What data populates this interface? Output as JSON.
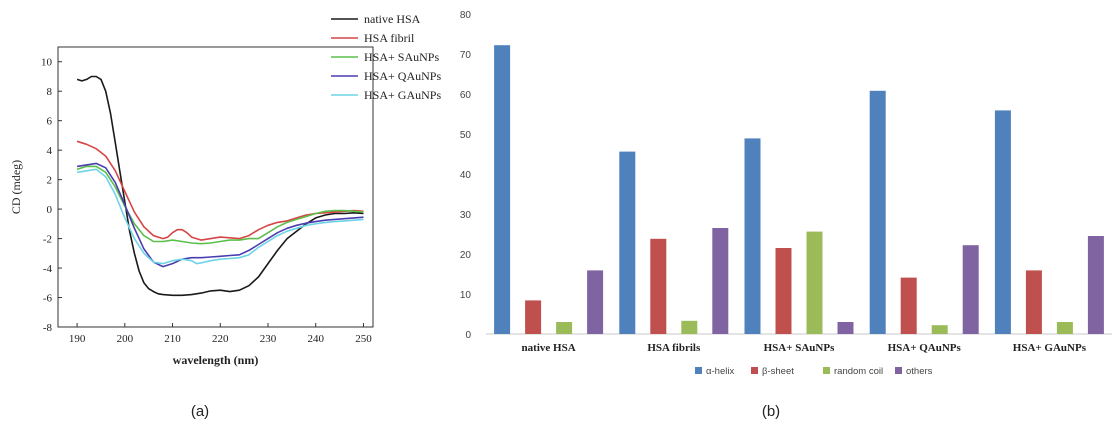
{
  "panels": {
    "a_label": "(a)",
    "b_label": "(b)"
  },
  "chart_data": [
    {
      "type": "line",
      "xlabel": "wavelength (nm)",
      "ylabel": "CD (mdeg)",
      "xlim": [
        186,
        252
      ],
      "ylim": [
        -8,
        11
      ],
      "xticks": [
        190,
        200,
        210,
        220,
        230,
        240,
        250
      ],
      "yticks": [
        -8,
        -6,
        -4,
        -2,
        0,
        2,
        4,
        6,
        8,
        10
      ],
      "grid": false,
      "legend_position": "top-right",
      "series": [
        {
          "name": "native HSA",
          "color": "#1a1a1a",
          "points": [
            [
              190,
              8.8
            ],
            [
              191,
              8.7
            ],
            [
              192,
              8.8
            ],
            [
              193,
              9.0
            ],
            [
              194,
              9.0
            ],
            [
              195,
              8.8
            ],
            [
              196,
              8.0
            ],
            [
              197,
              6.5
            ],
            [
              198,
              4.5
            ],
            [
              199,
              2.5
            ],
            [
              200,
              0.5
            ],
            [
              201,
              -1.5
            ],
            [
              202,
              -3.0
            ],
            [
              203,
              -4.2
            ],
            [
              204,
              -5.0
            ],
            [
              205,
              -5.4
            ],
            [
              206,
              -5.6
            ],
            [
              207,
              -5.75
            ],
            [
              208,
              -5.8
            ],
            [
              210,
              -5.85
            ],
            [
              212,
              -5.85
            ],
            [
              214,
              -5.8
            ],
            [
              216,
              -5.7
            ],
            [
              218,
              -5.55
            ],
            [
              220,
              -5.5
            ],
            [
              222,
              -5.6
            ],
            [
              224,
              -5.5
            ],
            [
              226,
              -5.2
            ],
            [
              228,
              -4.6
            ],
            [
              230,
              -3.7
            ],
            [
              232,
              -2.8
            ],
            [
              234,
              -2.0
            ],
            [
              236,
              -1.5
            ],
            [
              238,
              -1.0
            ],
            [
              240,
              -0.6
            ],
            [
              242,
              -0.4
            ],
            [
              244,
              -0.3
            ],
            [
              246,
              -0.3
            ],
            [
              248,
              -0.25
            ],
            [
              250,
              -0.3
            ]
          ]
        },
        {
          "name": "HSA fibril",
          "color": "#d64545",
          "points": [
            [
              190,
              4.6
            ],
            [
              192,
              4.4
            ],
            [
              194,
              4.1
            ],
            [
              196,
              3.6
            ],
            [
              198,
              2.6
            ],
            [
              200,
              1.2
            ],
            [
              202,
              -0.2
            ],
            [
              204,
              -1.2
            ],
            [
              206,
              -1.8
            ],
            [
              208,
              -2.0
            ],
            [
              209,
              -1.9
            ],
            [
              210,
              -1.6
            ],
            [
              211,
              -1.4
            ],
            [
              212,
              -1.4
            ],
            [
              213,
              -1.6
            ],
            [
              214,
              -1.9
            ],
            [
              216,
              -2.1
            ],
            [
              218,
              -2.0
            ],
            [
              220,
              -1.9
            ],
            [
              222,
              -1.95
            ],
            [
              224,
              -2.0
            ],
            [
              226,
              -1.8
            ],
            [
              228,
              -1.4
            ],
            [
              230,
              -1.1
            ],
            [
              232,
              -0.9
            ],
            [
              234,
              -0.8
            ],
            [
              236,
              -0.6
            ],
            [
              238,
              -0.4
            ],
            [
              240,
              -0.3
            ],
            [
              242,
              -0.25
            ],
            [
              244,
              -0.2
            ],
            [
              246,
              -0.15
            ],
            [
              248,
              -0.1
            ],
            [
              250,
              -0.15
            ]
          ]
        },
        {
          "name": "HSA+ SAuNPs",
          "color": "#5cbf4a",
          "points": [
            [
              190,
              2.7
            ],
            [
              192,
              2.9
            ],
            [
              194,
              2.9
            ],
            [
              196,
              2.5
            ],
            [
              198,
              1.5
            ],
            [
              200,
              0.2
            ],
            [
              202,
              -1.0
            ],
            [
              204,
              -1.8
            ],
            [
              206,
              -2.2
            ],
            [
              208,
              -2.2
            ],
            [
              210,
              -2.1
            ],
            [
              212,
              -2.2
            ],
            [
              214,
              -2.3
            ],
            [
              216,
              -2.35
            ],
            [
              218,
              -2.3
            ],
            [
              220,
              -2.2
            ],
            [
              222,
              -2.1
            ],
            [
              224,
              -2.1
            ],
            [
              226,
              -2.0
            ],
            [
              228,
              -2.0
            ],
            [
              230,
              -1.6
            ],
            [
              232,
              -1.2
            ],
            [
              234,
              -0.9
            ],
            [
              236,
              -0.7
            ],
            [
              238,
              -0.5
            ],
            [
              240,
              -0.3
            ],
            [
              242,
              -0.15
            ],
            [
              244,
              -0.1
            ],
            [
              246,
              -0.1
            ],
            [
              248,
              -0.15
            ],
            [
              250,
              -0.2
            ]
          ]
        },
        {
          "name": "HSA+ QAuNPs",
          "color": "#4a3db0",
          "points": [
            [
              190,
              2.9
            ],
            [
              192,
              3.0
            ],
            [
              194,
              3.1
            ],
            [
              196,
              2.8
            ],
            [
              198,
              1.8
            ],
            [
              200,
              0.3
            ],
            [
              202,
              -1.3
            ],
            [
              204,
              -2.7
            ],
            [
              206,
              -3.6
            ],
            [
              208,
              -3.9
            ],
            [
              210,
              -3.7
            ],
            [
              212,
              -3.4
            ],
            [
              214,
              -3.3
            ],
            [
              216,
              -3.3
            ],
            [
              218,
              -3.25
            ],
            [
              220,
              -3.2
            ],
            [
              222,
              -3.15
            ],
            [
              224,
              -3.1
            ],
            [
              226,
              -2.8
            ],
            [
              228,
              -2.4
            ],
            [
              230,
              -2.0
            ],
            [
              232,
              -1.6
            ],
            [
              234,
              -1.3
            ],
            [
              236,
              -1.1
            ],
            [
              238,
              -0.95
            ],
            [
              240,
              -0.85
            ],
            [
              242,
              -0.75
            ],
            [
              244,
              -0.7
            ],
            [
              246,
              -0.65
            ],
            [
              248,
              -0.6
            ],
            [
              250,
              -0.55
            ]
          ]
        },
        {
          "name": "HSA+ GAuNPs",
          "color": "#6fd3e6",
          "points": [
            [
              190,
              2.5
            ],
            [
              192,
              2.6
            ],
            [
              194,
              2.7
            ],
            [
              196,
              2.2
            ],
            [
              198,
              1.0
            ],
            [
              200,
              -0.6
            ],
            [
              202,
              -2.0
            ],
            [
              204,
              -3.0
            ],
            [
              206,
              -3.6
            ],
            [
              208,
              -3.7
            ],
            [
              210,
              -3.5
            ],
            [
              212,
              -3.4
            ],
            [
              214,
              -3.5
            ],
            [
              215,
              -3.7
            ],
            [
              216,
              -3.65
            ],
            [
              218,
              -3.5
            ],
            [
              220,
              -3.4
            ],
            [
              222,
              -3.35
            ],
            [
              224,
              -3.3
            ],
            [
              226,
              -3.1
            ],
            [
              228,
              -2.6
            ],
            [
              230,
              -2.2
            ],
            [
              232,
              -1.8
            ],
            [
              234,
              -1.5
            ],
            [
              236,
              -1.3
            ],
            [
              238,
              -1.1
            ],
            [
              240,
              -1.0
            ],
            [
              242,
              -0.9
            ],
            [
              244,
              -0.85
            ],
            [
              246,
              -0.8
            ],
            [
              248,
              -0.75
            ],
            [
              250,
              -0.7
            ]
          ]
        }
      ]
    },
    {
      "type": "bar",
      "ylim": [
        0,
        80
      ],
      "yticks": [
        0,
        10,
        20,
        30,
        40,
        50,
        60,
        70,
        80
      ],
      "grid": false,
      "legend_position": "bottom",
      "categories": [
        "native HSA",
        "HSA fibrils",
        "HSA+ SAuNPs",
        "HSA+ QAuNPs",
        "HSA+ GAuNPs"
      ],
      "series": [
        {
          "name": "α-helix",
          "color": "#4f81bd",
          "values": [
            72.2,
            45.6,
            48.9,
            60.8,
            55.9
          ]
        },
        {
          "name": "β-sheet",
          "color": "#c0504d",
          "values": [
            8.4,
            23.8,
            21.5,
            14.1,
            15.9
          ]
        },
        {
          "name": "random coil",
          "color": "#9bbb59",
          "values": [
            3.0,
            3.3,
            25.6,
            2.2,
            3.0
          ]
        },
        {
          "name": "others",
          "color": "#8064a2",
          "values": [
            15.9,
            26.5,
            3.0,
            22.2,
            24.5
          ]
        }
      ]
    }
  ]
}
